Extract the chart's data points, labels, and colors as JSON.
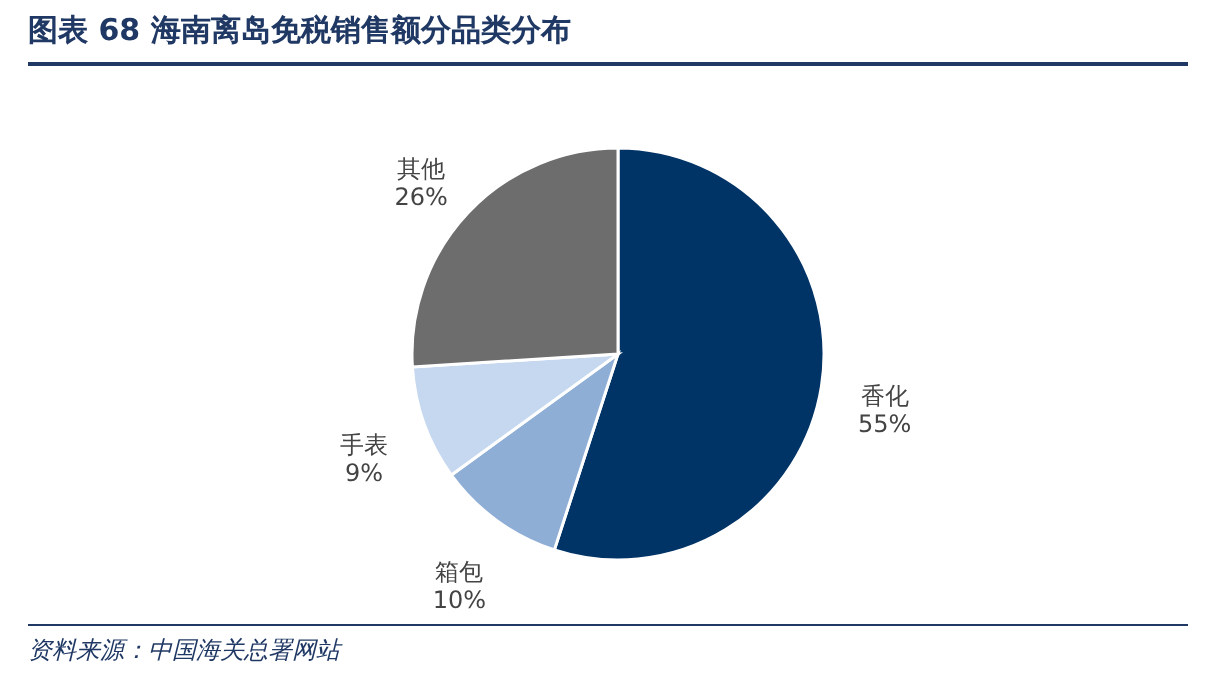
{
  "chart_data": {
    "type": "pie",
    "title": "图表 68   海南离岛免税销售额分品类分布",
    "categories": [
      "香化",
      "箱包",
      "手表",
      "其他"
    ],
    "values": [
      55,
      10,
      9,
      26
    ],
    "colors": [
      "#003366",
      "#8eaed6",
      "#c5d8ef",
      "#6d6d6d"
    ],
    "value_labels": [
      "55%",
      "10%",
      "9%",
      "26%"
    ],
    "annotations": [
      "资料来源：中国海关总署网站"
    ],
    "legend": false
  }
}
